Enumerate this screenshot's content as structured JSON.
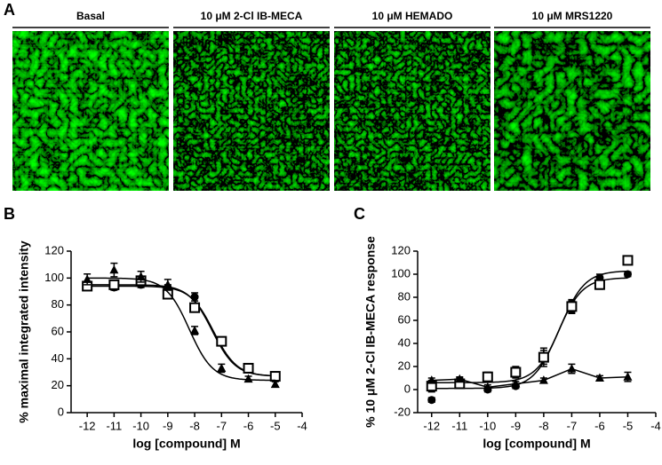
{
  "panels": {
    "a": "A",
    "b": "B",
    "c": "C"
  },
  "images": [
    {
      "title": "Basal"
    },
    {
      "title": "10 μM 2-Cl IB-MECA"
    },
    {
      "title": "10 μM HEMADO"
    },
    {
      "title": "10 μM MRS1220"
    }
  ],
  "chart_data": [
    {
      "type": "scatter",
      "x_label": "log [compound] M",
      "y_label": "% maximal integrated intensity",
      "xlim": [
        -12.6,
        -4
      ],
      "xticks": [
        -12,
        -11,
        -10,
        -9,
        -8,
        -7,
        -6,
        -5,
        -4
      ],
      "ylim": [
        0,
        120
      ],
      "yticks": [
        0,
        20,
        40,
        60,
        80,
        100,
        120
      ],
      "x": [
        -12,
        -11,
        -10,
        -9,
        -8,
        -7,
        -6,
        -5
      ],
      "series": [
        {
          "marker": "circle",
          "color": "#000000",
          "values": [
            94,
            93,
            95,
            93,
            86,
            53,
            32,
            27
          ],
          "errors": [
            2,
            2,
            2,
            2,
            3,
            2,
            2,
            2
          ],
          "fit": {
            "bottom": 27,
            "top": 94,
            "log_ec50": -7.3,
            "hill": -1
          }
        },
        {
          "marker": "square",
          "color": "#000000",
          "values": [
            94,
            95,
            98,
            88,
            78,
            53,
            33,
            27
          ],
          "errors": [
            3,
            3,
            3,
            3,
            3,
            2,
            2,
            2
          ],
          "fit": {
            "bottom": 27,
            "top": 95,
            "log_ec50": -7.35,
            "hill": -1
          }
        },
        {
          "marker": "triangle",
          "color": "#000000",
          "values": [
            99,
            106,
            101,
            95,
            61,
            33,
            25,
            21
          ],
          "errors": [
            4,
            5,
            4,
            4,
            3,
            3,
            2,
            2
          ],
          "fit": {
            "bottom": 24,
            "top": 100,
            "log_ec50": -8.2,
            "hill": -1
          }
        }
      ]
    },
    {
      "type": "scatter",
      "x_label": "log [compound] M",
      "y_label": "% 10 μM 2-Cl IB-MECA response",
      "xlim": [
        -12.5,
        -4
      ],
      "xticks": [
        -12,
        -11,
        -10,
        -9,
        -8,
        -7,
        -6,
        -5,
        -4
      ],
      "ylim": [
        -20,
        120
      ],
      "yticks": [
        -20,
        0,
        20,
        40,
        60,
        80,
        100,
        120
      ],
      "x": [
        -12,
        -11,
        -10,
        -9,
        -8,
        -7,
        -6,
        -5
      ],
      "series": [
        {
          "marker": "circle",
          "color": "#000000",
          "values": [
            -9,
            8,
            0,
            3,
            28,
            72,
            97,
            100
          ],
          "errors": [
            2,
            2,
            2,
            2,
            6,
            5,
            3,
            2
          ],
          "fit": {
            "bottom": 1,
            "top": 97,
            "log_ec50": -7.5,
            "hill": 1
          }
        },
        {
          "marker": "square",
          "color": "#000000",
          "values": [
            3,
            5,
            11,
            15,
            28,
            72,
            91,
            112
          ],
          "errors": [
            5,
            4,
            4,
            5,
            8,
            6,
            4,
            3
          ],
          "fit": {
            "bottom": 6,
            "top": 103,
            "log_ec50": -7.4,
            "hill": 1
          }
        },
        {
          "marker": "triangle",
          "color": "#000000",
          "values": [
            8,
            9,
            2,
            5,
            8,
            18,
            10,
            11
          ],
          "errors": [
            2,
            2,
            2,
            2,
            2,
            4,
            2,
            4
          ],
          "connect": true
        }
      ]
    }
  ]
}
